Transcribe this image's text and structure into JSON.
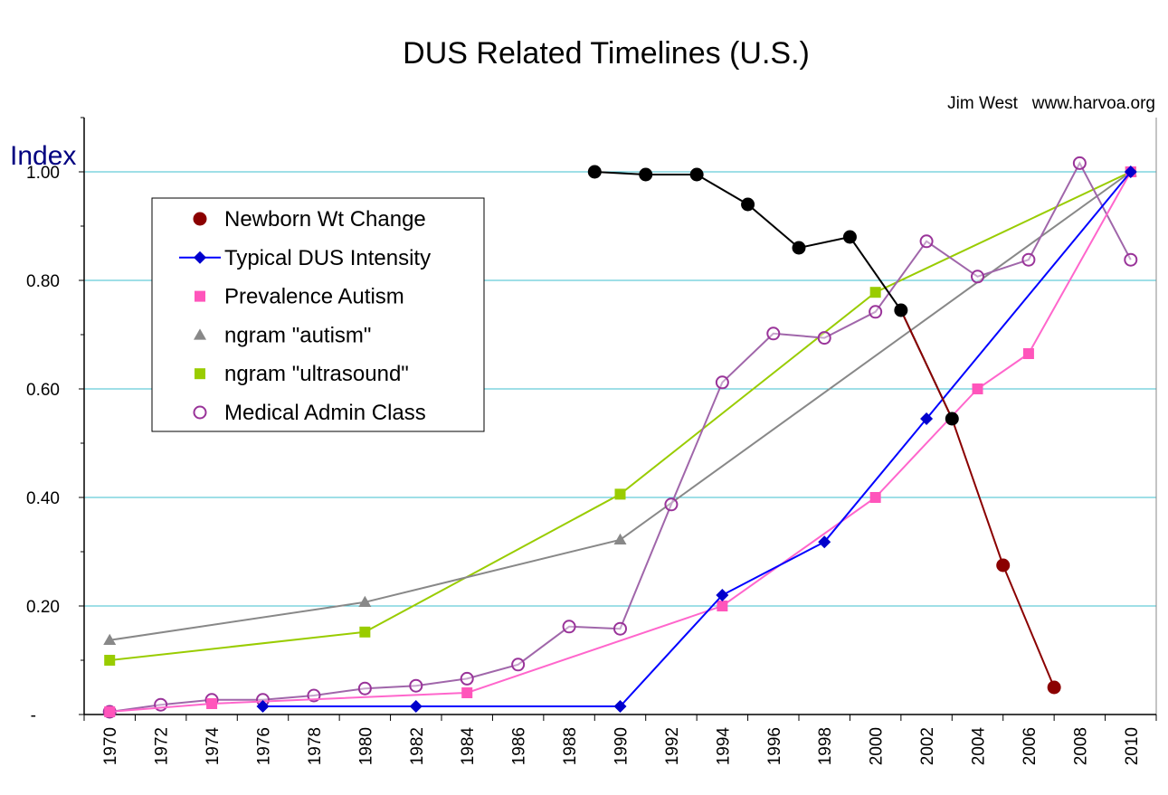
{
  "chart_data": {
    "type": "line",
    "title": "DUS Related Timelines (U.S.)",
    "credit": "Jim West   www.harvoa.org",
    "ylabel": "Index",
    "xlabel": "",
    "ylim": [
      0,
      1.1
    ],
    "xlim": [
      1969,
      2011
    ],
    "yticks": [
      {
        "v": 0,
        "label": "-"
      },
      {
        "v": 0.2,
        "label": "0.20"
      },
      {
        "v": 0.4,
        "label": "0.40"
      },
      {
        "v": 0.6,
        "label": "0.60"
      },
      {
        "v": 0.8,
        "label": "0.80"
      },
      {
        "v": 1.0,
        "label": "1.00"
      }
    ],
    "xticks": [
      "1970",
      "1972",
      "1974",
      "1976",
      "1978",
      "1980",
      "1982",
      "1984",
      "1986",
      "1988",
      "1990",
      "1992",
      "1994",
      "1996",
      "1998",
      "2000",
      "2002",
      "2004",
      "2006",
      "2008",
      "2010"
    ],
    "grid": "horizontal",
    "legend_position": "top-left",
    "series": [
      {
        "name": "Newborn Wt Change",
        "color": "#8b0000",
        "marker": "circle",
        "points": [
          [
            1989,
            1.0
          ],
          [
            1991,
            0.995
          ],
          [
            1993,
            0.995
          ],
          [
            1995,
            0.94
          ],
          [
            1997,
            0.86
          ],
          [
            1999,
            0.88
          ],
          [
            2001,
            0.745
          ],
          [
            2003,
            0.545
          ],
          [
            2005,
            0.275
          ],
          [
            2007,
            0.05
          ]
        ],
        "line_segments": [
          {
            "from": 0,
            "to": 7,
            "color": "#000000",
            "marker_fill": "#000000"
          },
          {
            "from": 6,
            "to": 9,
            "color": "#8b0000",
            "marker_fill": "#8b0000"
          }
        ]
      },
      {
        "name": "Typical DUS Intensity",
        "color": "#0000ff",
        "marker": "diamond",
        "marker_color": "#0000cc",
        "points": [
          [
            1976,
            0.015
          ],
          [
            1982,
            0.015
          ],
          [
            1990,
            0.015
          ],
          [
            1994,
            0.22
          ],
          [
            1998,
            0.318
          ],
          [
            2002,
            0.545
          ],
          [
            2010,
            1.0
          ]
        ]
      },
      {
        "name": "Prevalence Autism",
        "color": "#ff66cc",
        "marker": "square",
        "marker_color": "#ff55bb",
        "points": [
          [
            1970,
            0.005
          ],
          [
            1974,
            0.02
          ],
          [
            1984,
            0.04
          ],
          [
            1994,
            0.2
          ],
          [
            2000,
            0.4
          ],
          [
            2004,
            0.6
          ],
          [
            2006,
            0.665
          ],
          [
            2010,
            1.0
          ]
        ]
      },
      {
        "name": "ngram \"autism\"",
        "color": "#888888",
        "marker": "triangle",
        "points": [
          [
            1970,
            0.137
          ],
          [
            1980,
            0.207
          ],
          [
            1990,
            0.322
          ],
          [
            2010,
            1.0
          ]
        ]
      },
      {
        "name": "ngram \"ultrasound\"",
        "color": "#99cc00",
        "marker": "square",
        "points": [
          [
            1970,
            0.1
          ],
          [
            1980,
            0.152
          ],
          [
            1990,
            0.406
          ],
          [
            2000,
            0.778
          ],
          [
            2010,
            1.0
          ]
        ]
      },
      {
        "name": "Medical Admin Class",
        "color": "#993399",
        "marker": "open-circle",
        "line_color": "#a066aa",
        "points": [
          [
            1970,
            0.005
          ],
          [
            1972,
            0.018
          ],
          [
            1974,
            0.027
          ],
          [
            1976,
            0.027
          ],
          [
            1978,
            0.035
          ],
          [
            1980,
            0.048
          ],
          [
            1982,
            0.053
          ],
          [
            1984,
            0.066
          ],
          [
            1986,
            0.092
          ],
          [
            1988,
            0.162
          ],
          [
            1990,
            0.158
          ],
          [
            1992,
            0.387
          ],
          [
            1994,
            0.612
          ],
          [
            1996,
            0.702
          ],
          [
            1998,
            0.694
          ],
          [
            2000,
            0.742
          ],
          [
            2002,
            0.872
          ],
          [
            2004,
            0.807
          ],
          [
            2006,
            0.838
          ],
          [
            2008,
            1.016
          ],
          [
            2010,
            0.838
          ]
        ]
      }
    ]
  }
}
